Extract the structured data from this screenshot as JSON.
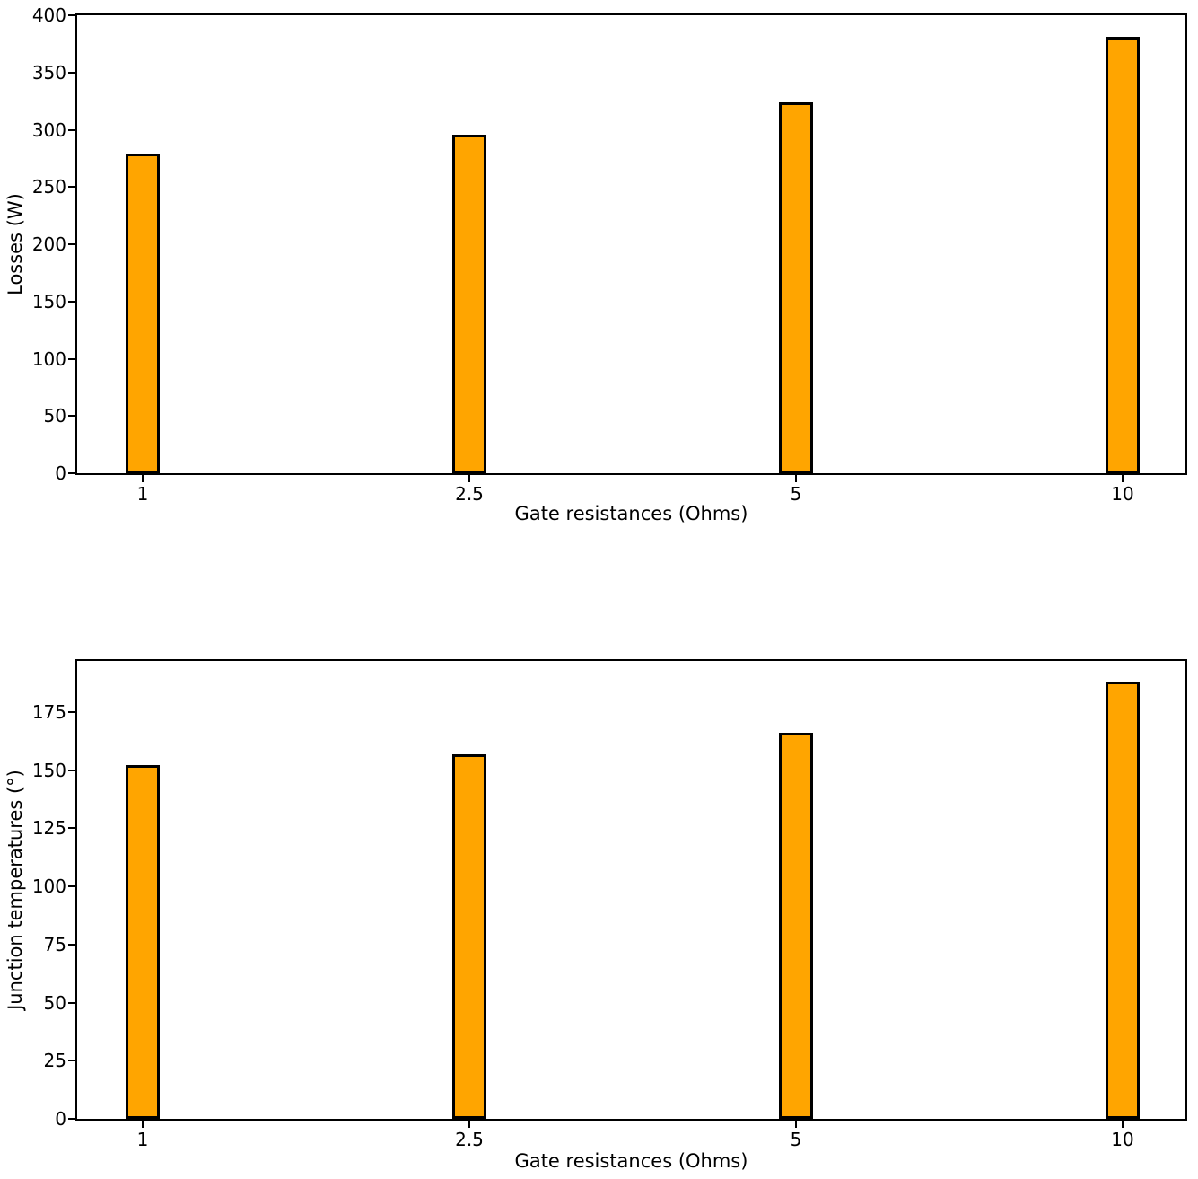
{
  "figure": {
    "background": "#ffffff"
  },
  "chart_data": [
    {
      "type": "bar",
      "categories": [
        "1",
        "2.5",
        "5",
        "10"
      ],
      "values": [
        279,
        296,
        324,
        381
      ],
      "xlabel": "Gate resistances (Ohms)",
      "ylabel": "Losses (W)",
      "yticks": [
        0,
        50,
        100,
        150,
        200,
        250,
        300,
        350,
        400
      ],
      "ylim": [
        0,
        400
      ],
      "grid": false,
      "legend": "none",
      "bar_color": "#FFA500",
      "bar_edge_color": "#000000"
    },
    {
      "type": "bar",
      "categories": [
        "1",
        "2.5",
        "5",
        "10"
      ],
      "values": [
        152,
        157,
        166,
        188
      ],
      "xlabel": "Gate resistances (Ohms)",
      "ylabel": "Junction temperatures (°)",
      "yticks": [
        0,
        25,
        50,
        75,
        100,
        125,
        150,
        175
      ],
      "ylim": [
        0,
        197
      ],
      "grid": false,
      "legend": "none",
      "bar_color": "#FFA500",
      "bar_edge_color": "#000000"
    }
  ]
}
